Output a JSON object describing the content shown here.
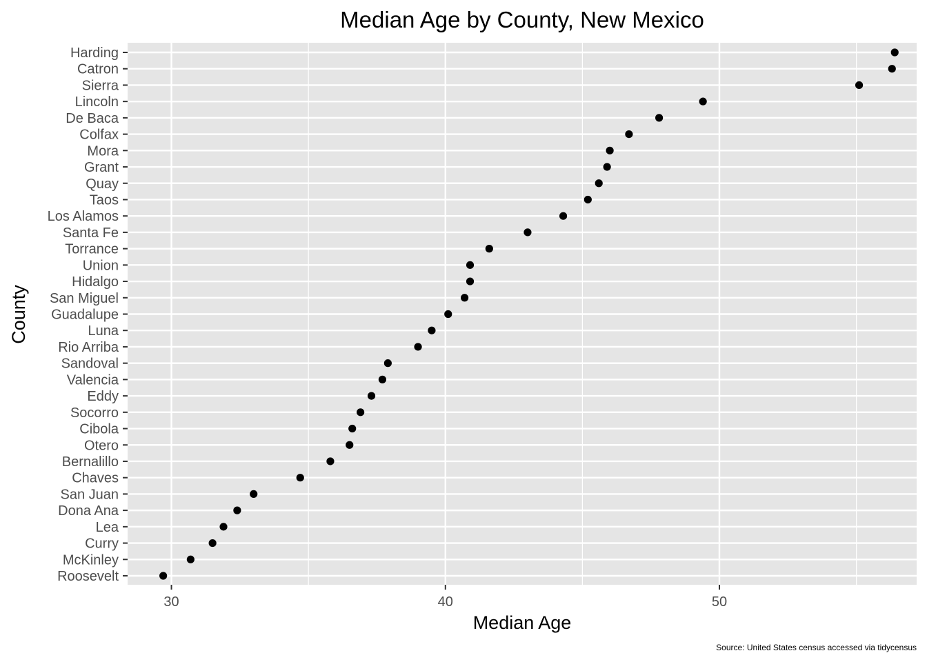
{
  "chart_data": {
    "type": "scatter",
    "title": "Median Age by County, New Mexico",
    "xlabel": "Median Age",
    "ylabel": "County",
    "caption": "Source: United States census accessed via tidycensus",
    "xlim": [
      28.4,
      57.2
    ],
    "x_ticks": [
      30,
      40,
      50
    ],
    "grid": true,
    "legend": "none",
    "colors": {
      "panel": "#e5e5e5",
      "grid": "#ffffff",
      "point": "#000000",
      "tick": "#333333"
    },
    "points": [
      {
        "county": "Harding",
        "value": 56.4
      },
      {
        "county": "Catron",
        "value": 56.3
      },
      {
        "county": "Sierra",
        "value": 55.1
      },
      {
        "county": "Lincoln",
        "value": 49.4
      },
      {
        "county": "De Baca",
        "value": 47.8
      },
      {
        "county": "Colfax",
        "value": 46.7
      },
      {
        "county": "Mora",
        "value": 46.0
      },
      {
        "county": "Grant",
        "value": 45.9
      },
      {
        "county": "Quay",
        "value": 45.6
      },
      {
        "county": "Taos",
        "value": 45.2
      },
      {
        "county": "Los Alamos",
        "value": 44.3
      },
      {
        "county": "Santa Fe",
        "value": 43.0
      },
      {
        "county": "Torrance",
        "value": 41.6
      },
      {
        "county": "Union",
        "value": 40.9
      },
      {
        "county": "Hidalgo",
        "value": 40.9
      },
      {
        "county": "San Miguel",
        "value": 40.7
      },
      {
        "county": "Guadalupe",
        "value": 40.1
      },
      {
        "county": "Luna",
        "value": 39.5
      },
      {
        "county": "Rio Arriba",
        "value": 39.0
      },
      {
        "county": "Sandoval",
        "value": 37.9
      },
      {
        "county": "Valencia",
        "value": 37.7
      },
      {
        "county": "Eddy",
        "value": 37.3
      },
      {
        "county": "Socorro",
        "value": 36.9
      },
      {
        "county": "Cibola",
        "value": 36.6
      },
      {
        "county": "Otero",
        "value": 36.5
      },
      {
        "county": "Bernalillo",
        "value": 35.8
      },
      {
        "county": "Chaves",
        "value": 34.7
      },
      {
        "county": "San Juan",
        "value": 33.0
      },
      {
        "county": "Dona Ana",
        "value": 32.4
      },
      {
        "county": "Lea",
        "value": 31.9
      },
      {
        "county": "Curry",
        "value": 31.5
      },
      {
        "county": "McKinley",
        "value": 30.7
      },
      {
        "county": "Roosevelt",
        "value": 29.7
      }
    ]
  }
}
